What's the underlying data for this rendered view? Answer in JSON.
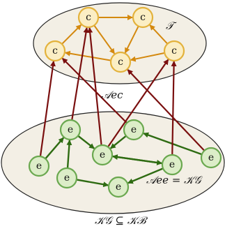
{
  "labels": {
    "top_set": "𝒯",
    "cross_relation": "𝒜ec",
    "bottom_relation": "𝒜ee = 𝒦𝒢",
    "caption": "𝒦𝒢 ⊆ 𝒦ℬ"
  },
  "concept_nodes": [
    {
      "id": "c1",
      "label": "c"
    },
    {
      "id": "c2",
      "label": "c"
    },
    {
      "id": "c3",
      "label": "c"
    },
    {
      "id": "c4",
      "label": "c"
    },
    {
      "id": "c5",
      "label": "c"
    },
    {
      "id": "c6",
      "label": "c"
    }
  ],
  "entity_nodes": [
    {
      "id": "e1",
      "label": "e"
    },
    {
      "id": "e2",
      "label": "e"
    },
    {
      "id": "e3",
      "label": "e"
    },
    {
      "id": "e4",
      "label": "e"
    },
    {
      "id": "e5",
      "label": "e"
    },
    {
      "id": "e6",
      "label": "e"
    },
    {
      "id": "e7",
      "label": "e"
    },
    {
      "id": "e8",
      "label": "e"
    },
    {
      "id": "e9",
      "label": "e"
    }
  ],
  "concept_edges": [
    [
      "c2",
      "c3"
    ],
    [
      "c1",
      "c2"
    ],
    [
      "c2",
      "c4"
    ],
    [
      "c3",
      "c4"
    ],
    [
      "c3",
      "c5"
    ],
    [
      "c4",
      "c5"
    ],
    [
      "c5",
      "c4"
    ],
    [
      "c6",
      "c1"
    ],
    [
      "c6",
      "c2"
    ]
  ],
  "entity_edges": [
    [
      "e1",
      "e2"
    ],
    [
      "e2",
      "e3"
    ],
    [
      "e2",
      "e4"
    ],
    [
      "e5",
      "e3"
    ],
    [
      "e5",
      "e4"
    ],
    [
      "e7",
      "e6"
    ],
    [
      "e8",
      "e3"
    ],
    [
      "e8",
      "e7"
    ],
    [
      "e9",
      "e5"
    ],
    [
      "e4",
      "e7"
    ]
  ],
  "cross_edges": [
    [
      "e1",
      "c6"
    ],
    [
      "e2",
      "c1"
    ],
    [
      "e3",
      "c1"
    ],
    [
      "e3",
      "c4"
    ],
    [
      "e5",
      "c6"
    ],
    [
      "e8",
      "c5"
    ],
    [
      "e9",
      "c4"
    ]
  ],
  "colors": {
    "concept_fill": "#fbeec4",
    "concept_stroke": "#e3b23c",
    "concept_edge": "#d4890f",
    "entity_fill": "#dcedc8",
    "entity_stroke": "#6aa84f",
    "entity_edge": "#2e6b12",
    "cross_edge": "#7a0f0f",
    "ellipse_fill": "#f3efe5",
    "ellipse_stroke": "#222222"
  }
}
